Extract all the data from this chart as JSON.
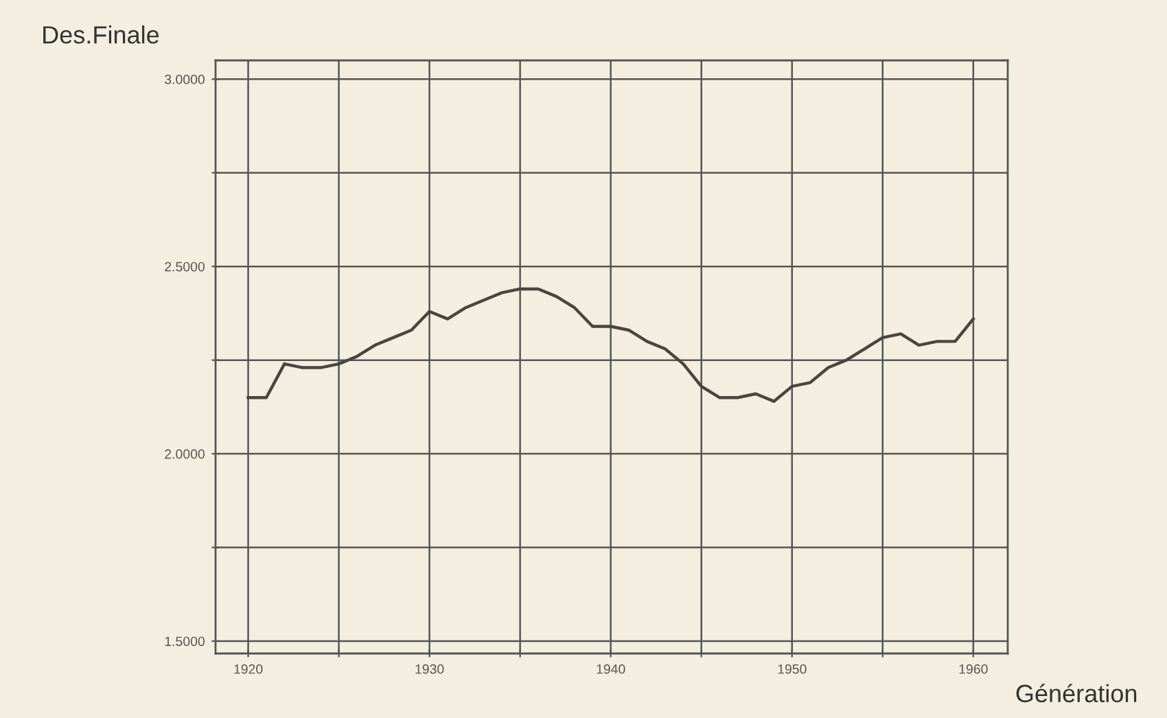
{
  "chart_data": {
    "type": "line",
    "xlabel": "Génération",
    "ylabel": "Des.Finale",
    "x": [
      1920,
      1921,
      1922,
      1923,
      1924,
      1925,
      1926,
      1927,
      1928,
      1929,
      1930,
      1931,
      1932,
      1933,
      1934,
      1935,
      1936,
      1937,
      1938,
      1939,
      1940,
      1941,
      1942,
      1943,
      1944,
      1945,
      1946,
      1947,
      1948,
      1949,
      1950,
      1951,
      1952,
      1953,
      1954,
      1955,
      1956,
      1957,
      1958,
      1959,
      1960
    ],
    "series": [
      {
        "color": "#4a4540",
        "values": [
          2.15,
          2.15,
          2.24,
          2.23,
          2.23,
          2.24,
          2.26,
          2.29,
          2.31,
          2.33,
          2.38,
          2.36,
          2.39,
          2.41,
          2.43,
          2.44,
          2.44,
          2.42,
          2.39,
          2.34,
          2.34,
          2.33,
          2.3,
          2.28,
          2.24,
          2.18,
          2.15,
          2.15,
          2.16,
          2.14,
          2.18,
          2.19,
          2.23,
          2.25,
          2.28,
          2.31,
          2.32,
          2.29,
          2.3,
          2.3,
          2.36
        ]
      }
    ],
    "xlim": [
      1918.2,
      1961.9
    ],
    "ylim": [
      1.467,
      3.05
    ],
    "xticks": [
      1920,
      {
        "value": 1925,
        "label": null
      },
      1930,
      {
        "value": 1935,
        "label": null
      },
      1940,
      {
        "value": 1945,
        "label": null
      },
      1950,
      {
        "value": 1955,
        "label": null
      },
      1960
    ],
    "yticks": [
      {
        "value": 1.5,
        "label": "1.5000"
      },
      {
        "value": 1.75,
        "label": null
      },
      {
        "value": 2.0,
        "label": "2.0000"
      },
      {
        "value": 2.25,
        "label": null
      },
      {
        "value": 2.5,
        "label": "2.5000"
      },
      {
        "value": 2.75,
        "label": null
      },
      {
        "value": 3.0,
        "label": "3.0000"
      }
    ],
    "grid": true,
    "marker": "none",
    "line_style": "solid"
  }
}
